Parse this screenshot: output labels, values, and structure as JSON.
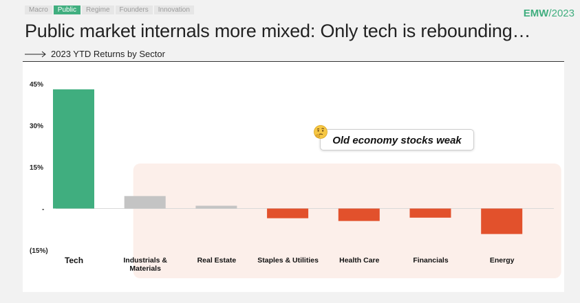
{
  "nav": {
    "tabs": [
      {
        "label": "Macro",
        "active": false
      },
      {
        "label": "Public",
        "active": true
      },
      {
        "label": "Regime",
        "active": false
      },
      {
        "label": "Founders",
        "active": false
      },
      {
        "label": "Innovation",
        "active": false
      }
    ]
  },
  "brand": {
    "name": "EMW",
    "year": "/2023"
  },
  "header": {
    "title": "Public market internals more mixed: Only tech is rebounding…"
  },
  "colors": {
    "accent": "#40ae7f",
    "positive_small": "#c4c4c4",
    "negative": "#e2512c",
    "highlight_region": "#fcefea"
  },
  "callout": {
    "text": "Old economy stocks weak",
    "icon": "thinking-face-icon"
  },
  "chart_data": {
    "type": "bar",
    "title": "2023 YTD Returns by Sector",
    "xlabel": "",
    "ylabel": "",
    "ylim": [
      -15,
      45
    ],
    "yticks": [
      {
        "value": 45,
        "label": "45%"
      },
      {
        "value": 30,
        "label": "30%"
      },
      {
        "value": 15,
        "label": "15%"
      },
      {
        "value": 0,
        "label": "-"
      },
      {
        "value": -15,
        "label": "(15%)"
      }
    ],
    "categories": [
      "Tech",
      "Industrials & Materials",
      "Real Estate",
      "Staples & Utilities",
      "Health Care",
      "Financials",
      "Energy"
    ],
    "values": [
      43,
      4.5,
      1,
      -3.5,
      -4.5,
      -3.3,
      -9.2
    ],
    "bar_colors": [
      "#40ae7f",
      "#c4c4c4",
      "#c4c4c4",
      "#e2512c",
      "#e2512c",
      "#e2512c",
      "#e2512c"
    ],
    "highlighted_categories": [
      "Industrials & Materials",
      "Real Estate",
      "Staples & Utilities",
      "Health Care",
      "Financials",
      "Energy"
    ]
  }
}
